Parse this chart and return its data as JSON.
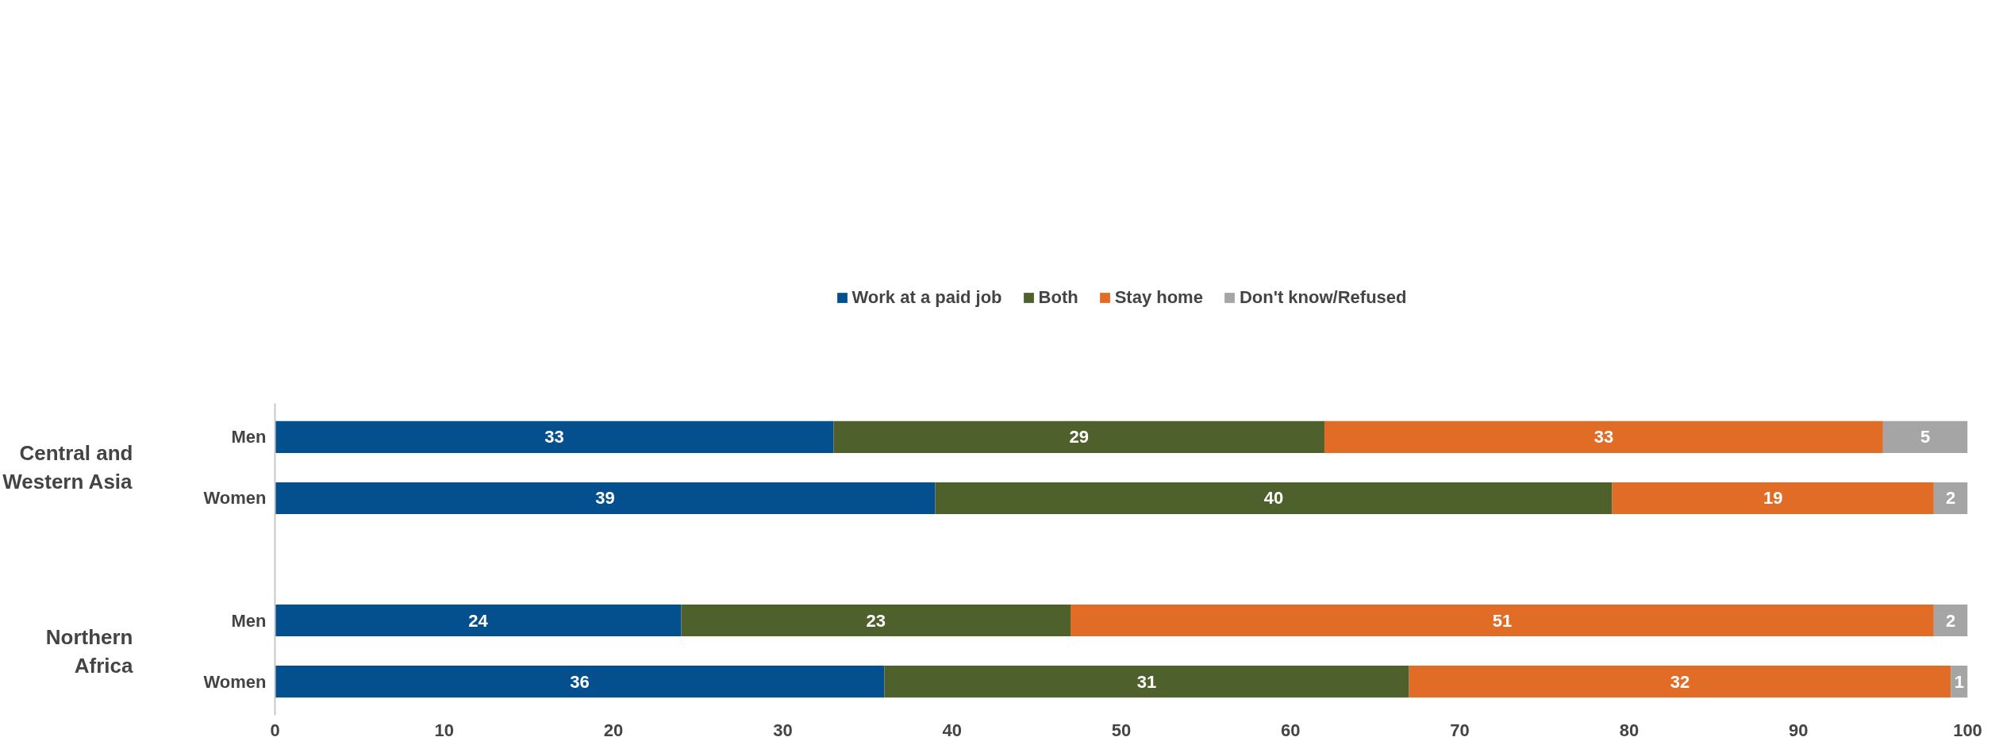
{
  "chart_data": {
    "type": "bar",
    "orientation": "horizontal",
    "stacked": true,
    "categories": [
      "Men",
      "Women",
      null,
      "Men",
      "Women"
    ],
    "series": [
      {
        "name": "Work at a paid job",
        "color": "#04508f",
        "values": [
          33,
          39,
          null,
          24,
          36
        ]
      },
      {
        "name": "Both",
        "color": "#4e612c",
        "values": [
          29,
          40,
          null,
          23,
          31
        ]
      },
      {
        "name": "Stay home",
        "color": "#e06c26",
        "values": [
          33,
          19,
          null,
          51,
          32
        ]
      },
      {
        "name": "Don't know/Refused",
        "color": "#a5a5a5",
        "values": [
          5,
          2,
          null,
          2,
          1
        ]
      }
    ],
    "annotations": [
      "Central and Western Asia",
      "Northern Africa"
    ],
    "xlim": [
      0,
      100
    ],
    "xticks": [
      0,
      10,
      20,
      30,
      40,
      50,
      60,
      70,
      80,
      90,
      100
    ],
    "data_labels": true,
    "legend": "top",
    "grid": false
  }
}
